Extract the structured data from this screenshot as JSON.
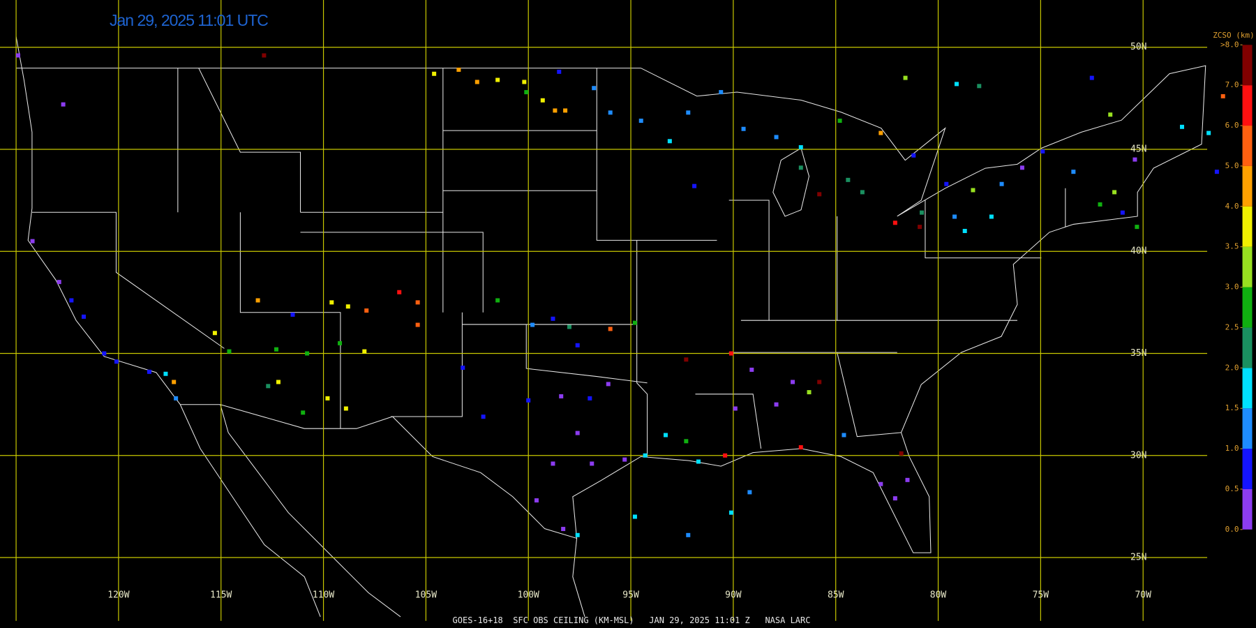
{
  "header": {
    "title": "Jan 29, 2025 11:01 UTC"
  },
  "footer": "GOES-16+18  SFC OBS CEILING (KM-MSL)   JAN 29, 2025 11:01 Z   NASA LARC",
  "map": {
    "grid_color": "#c8c800",
    "lat_ticks": [
      {
        "value": 50,
        "label": "50N"
      },
      {
        "value": 45,
        "label": "45N"
      },
      {
        "value": 40,
        "label": "40N"
      },
      {
        "value": 35,
        "label": "35N"
      },
      {
        "value": 30,
        "label": "30N"
      },
      {
        "value": 25,
        "label": "25N"
      }
    ],
    "lon_ticks": [
      {
        "value": -125,
        "label": null
      },
      {
        "value": -120,
        "label": "120W"
      },
      {
        "value": -115,
        "label": "115W"
      },
      {
        "value": -110,
        "label": "110W"
      },
      {
        "value": -105,
        "label": "105W"
      },
      {
        "value": -100,
        "label": "100W"
      },
      {
        "value": -95,
        "label": "95W"
      },
      {
        "value": -90,
        "label": "90W"
      },
      {
        "value": -85,
        "label": "85W"
      },
      {
        "value": -80,
        "label": "80W"
      },
      {
        "value": -75,
        "label": "75W"
      },
      {
        "value": -70,
        "label": "70W"
      }
    ]
  },
  "colorbar": {
    "title": "ZCSO (km)",
    "ticks": [
      {
        "value": 0,
        "label": "0.0"
      },
      {
        "value": 0.5,
        "label": "0.5"
      },
      {
        "value": 1,
        "label": "1.0"
      },
      {
        "value": 1.5,
        "label": "1.5"
      },
      {
        "value": 2,
        "label": "2.0"
      },
      {
        "value": 2.5,
        "label": "2.5"
      },
      {
        "value": 3,
        "label": "3.0"
      },
      {
        "value": 3.5,
        "label": "3.5"
      },
      {
        "value": 4,
        "label": "4.0"
      },
      {
        "value": 5,
        "label": "5.0"
      },
      {
        "value": 6,
        "label": "6.0"
      },
      {
        "value": 7,
        "label": "7.0"
      },
      {
        "value": 8,
        "label": ">8.0"
      }
    ],
    "colors": [
      "#8c3cf0",
      "#1414ff",
      "#1e8cff",
      "#00e0ff",
      "#1a9060",
      "#10b010",
      "#98e020",
      "#f0f000",
      "#ffa000",
      "#ff6010",
      "#ff1010",
      "#800000"
    ]
  },
  "stations": {
    "lon": [
      -124.9,
      -122.7,
      -124.2,
      -122.9,
      -122.3,
      -121.7,
      -120.7,
      -120.1,
      -118.5,
      -117.7,
      -117.3,
      -117.2,
      -112.9,
      -115.3,
      -114.6,
      -113.2,
      -111.5,
      -112.3,
      -112.2,
      -112.7,
      -111.0,
      -110.8,
      -109.6,
      -108.8,
      -107.9,
      -106.3,
      -105.4,
      -105.4,
      -109.2,
      -108.0,
      -109.8,
      -108.9,
      -104.6,
      -103.4,
      -102.5,
      -101.5,
      -100.2,
      -99.3,
      -98.7,
      -98.2,
      -100.1,
      -98.5,
      -96.8,
      -96.0,
      -94.5,
      -93.1,
      -92.2,
      -91.9,
      -90.6,
      -89.5,
      -87.9,
      -86.7,
      -86.7,
      -84.8,
      -84.4,
      -83.7,
      -82.8,
      -85.8,
      -81.6,
      -79.1,
      -78.0,
      -72.5,
      -81.2,
      -79.6,
      -78.3,
      -76.9,
      -75.9,
      -74.9,
      -73.4,
      -72.1,
      -71.4,
      -71.0,
      -70.3,
      -71.6,
      -70.4,
      -68.1,
      -66.8,
      -66.1,
      -66.4,
      -78.7,
      -79.2,
      -80.8,
      -82.1,
      -80.9,
      -77.4,
      -101.5,
      -99.8,
      -98.8,
      -98.0,
      -97.6,
      -96.0,
      -94.8,
      -103.2,
      -102.2,
      -100.0,
      -98.4,
      -97.0,
      -96.1,
      -97.6,
      -98.8,
      -96.9,
      -95.3,
      -99.6,
      -97.6,
      -98.3,
      -94.3,
      -93.3,
      -92.3,
      -91.7,
      -90.4,
      -90.1,
      -89.1,
      -89.9,
      -87.9,
      -87.1,
      -86.3,
      -85.8,
      -84.6,
      -86.7,
      -82.8,
      -82.1,
      -81.5,
      -92.2,
      -94.8,
      -90.1,
      -89.2,
      -92.3,
      -81.8
    ],
    "lat": [
      49.6,
      47.2,
      40.5,
      38.5,
      37.6,
      36.8,
      35.0,
      34.6,
      34.1,
      34.0,
      33.6,
      32.8,
      49.6,
      36.0,
      35.1,
      37.6,
      36.9,
      35.2,
      33.6,
      33.4,
      32.1,
      35.0,
      37.5,
      37.3,
      37.1,
      38.0,
      37.5,
      36.4,
      35.5,
      35.1,
      32.8,
      32.3,
      48.7,
      48.9,
      48.3,
      48.4,
      48.3,
      47.4,
      46.9,
      46.9,
      47.8,
      48.8,
      48.0,
      46.8,
      46.4,
      45.4,
      46.8,
      43.2,
      47.8,
      46.0,
      45.6,
      45.1,
      44.1,
      46.4,
      43.5,
      42.9,
      45.8,
      42.8,
      48.5,
      48.2,
      48.1,
      48.5,
      44.7,
      43.3,
      43.0,
      43.3,
      44.1,
      44.9,
      43.9,
      42.3,
      42.9,
      41.9,
      41.2,
      46.7,
      44.5,
      46.1,
      45.8,
      47.6,
      43.9,
      41.0,
      41.7,
      41.9,
      41.4,
      41.2,
      41.7,
      37.6,
      36.4,
      36.7,
      36.3,
      35.4,
      36.2,
      36.5,
      34.3,
      31.9,
      32.7,
      32.9,
      32.8,
      33.5,
      31.1,
      29.6,
      29.6,
      29.8,
      27.8,
      26.1,
      26.4,
      30.0,
      31.0,
      30.7,
      29.7,
      30.0,
      35.0,
      34.2,
      32.3,
      32.5,
      33.6,
      33.1,
      33.6,
      31.0,
      30.4,
      28.6,
      27.9,
      28.8,
      26.1,
      27.0,
      27.2,
      28.2,
      34.7,
      30.1
    ],
    "ceiling": [
      0.3,
      0.3,
      0.3,
      0.3,
      0.8,
      0.8,
      0.8,
      0.8,
      0.8,
      1.7,
      4.5,
      1.2,
      7.5,
      3.7,
      2.7,
      4.5,
      0.8,
      2.7,
      3.7,
      2.2,
      2.7,
      2.7,
      3.7,
      3.7,
      5.5,
      6.5,
      5.5,
      5.5,
      2.7,
      3.7,
      3.7,
      3.7,
      3.7,
      4.5,
      4.5,
      3.7,
      3.7,
      3.7,
      4.5,
      4.5,
      2.7,
      0.8,
      1.2,
      1.2,
      1.2,
      1.7,
      1.2,
      0.8,
      1.2,
      1.2,
      1.2,
      1.7,
      2.2,
      2.7,
      2.2,
      2.2,
      4.5,
      7.5,
      3.2,
      1.7,
      2.2,
      0.8,
      0.8,
      0.8,
      3.2,
      1.2,
      0.3,
      0.8,
      1.2,
      2.7,
      3.2,
      0.8,
      2.7,
      3.2,
      0.3,
      1.7,
      1.7,
      5.5,
      0.8,
      1.7,
      1.2,
      2.2,
      6.5,
      7.5,
      1.7,
      2.7,
      1.2,
      0.8,
      2.2,
      0.8,
      5.5,
      2.7,
      0.8,
      0.8,
      0.8,
      0.3,
      0.8,
      0.3,
      0.3,
      0.3,
      0.3,
      0.3,
      0.3,
      1.7,
      0.3,
      1.7,
      1.7,
      2.7,
      1.7,
      6.5,
      6.5,
      0.3,
      0.3,
      0.3,
      0.3,
      3.2,
      7.5,
      1.2,
      6.5,
      0.3,
      0.3,
      0.3,
      1.2,
      1.7,
      1.7,
      1.2,
      7.5,
      7.5
    ]
  }
}
